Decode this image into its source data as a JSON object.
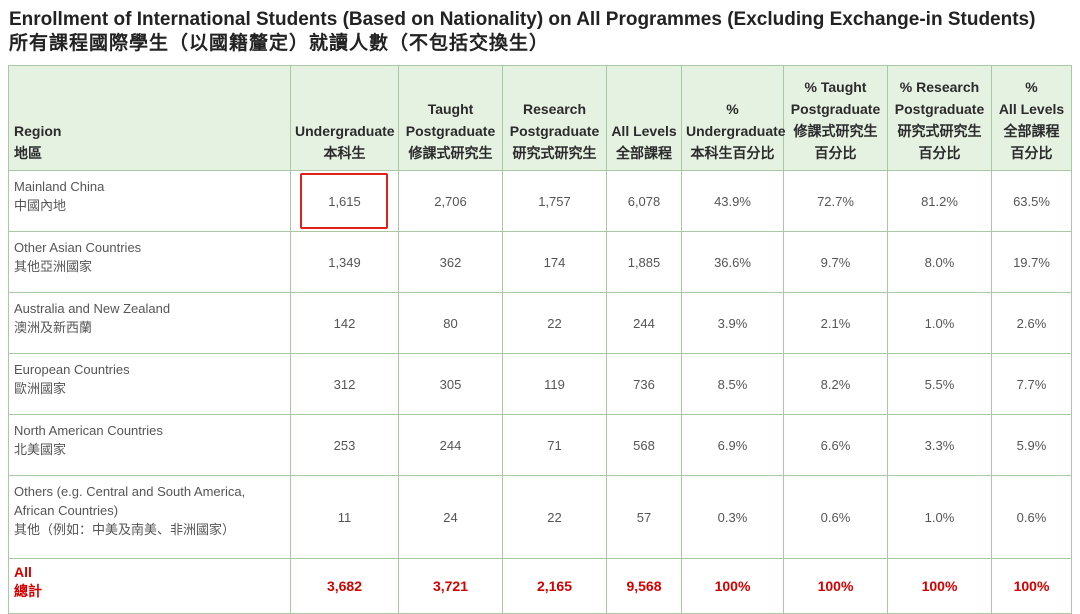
{
  "title": {
    "en": "Enrollment of International Students (Based on Nationality) on All Programmes (Excluding Exchange-in Students)",
    "zh": "所有課程國際學生（以國籍釐定）就讀人數（不包括交換生）"
  },
  "colors": {
    "header_bg": "#e5f2e2",
    "border": "#a9c9a4",
    "total_text": "#d40000",
    "highlight": "#e0201b"
  },
  "headers": [
    {
      "en": "Region",
      "zh": "地區"
    },
    {
      "en": "Undergraduate",
      "zh": "本科生"
    },
    {
      "en1": "Taught",
      "en": "Postgraduate",
      "zh": "修課式研究生"
    },
    {
      "en1": "Research",
      "en": "Postgraduate",
      "zh": "研究式研究生"
    },
    {
      "en": "All Levels",
      "zh": "全部課程"
    },
    {
      "en1": "%",
      "en": "Undergraduate",
      "zh": "本科生百分比"
    },
    {
      "en1": "% Taught",
      "en2": "Postgraduate",
      "en": "修課式研究生",
      "zh": "百分比"
    },
    {
      "en1": "% Research",
      "en2": "Postgraduate",
      "en": "研究式研究生",
      "zh": "百分比"
    },
    {
      "en1": "%",
      "en2": "All Levels",
      "en": "全部課程",
      "zh": "百分比"
    }
  ],
  "rows": [
    {
      "region_en": "Mainland China",
      "region_zh": "中國內地",
      "ug": "1,615",
      "tpg": "2,706",
      "rpg": "1,757",
      "all": "6,078",
      "pct_ug": "43.9%",
      "pct_tpg": "72.7%",
      "pct_rpg": "81.2%",
      "pct_all": "63.5%"
    },
    {
      "region_en": "Other Asian Countries",
      "region_zh": "其他亞洲國家",
      "ug": "1,349",
      "tpg": "362",
      "rpg": "174",
      "all": "1,885",
      "pct_ug": "36.6%",
      "pct_tpg": "9.7%",
      "pct_rpg": "8.0%",
      "pct_all": "19.7%"
    },
    {
      "region_en": "Australia and New Zealand",
      "region_zh": "澳洲及新西蘭",
      "ug": "142",
      "tpg": "80",
      "rpg": "22",
      "all": "244",
      "pct_ug": "3.9%",
      "pct_tpg": "2.1%",
      "pct_rpg": "1.0%",
      "pct_all": "2.6%"
    },
    {
      "region_en": "European Countries",
      "region_zh": "歐洲國家",
      "ug": "312",
      "tpg": "305",
      "rpg": "119",
      "all": "736",
      "pct_ug": "8.5%",
      "pct_tpg": "8.2%",
      "pct_rpg": "5.5%",
      "pct_all": "7.7%"
    },
    {
      "region_en": "North American Countries",
      "region_zh": "北美國家",
      "ug": "253",
      "tpg": "244",
      "rpg": "71",
      "all": "568",
      "pct_ug": "6.9%",
      "pct_tpg": "6.6%",
      "pct_rpg": "3.3%",
      "pct_all": "5.9%"
    },
    {
      "region_en": "Others (e.g. Central and South America, African Countries)",
      "region_zh": "其他（例如：中美及南美、非洲國家）",
      "ug": "11",
      "tpg": "24",
      "rpg": "22",
      "all": "57",
      "pct_ug": "0.3%",
      "pct_tpg": "0.6%",
      "pct_rpg": "1.0%",
      "pct_all": "0.6%"
    }
  ],
  "total": {
    "region_en": "All",
    "region_zh": "總計",
    "ug": "3,682",
    "tpg": "3,721",
    "rpg": "2,165",
    "all": "9,568",
    "pct_ug": "100%",
    "pct_tpg": "100%",
    "pct_rpg": "100%",
    "pct_all": "100%"
  }
}
